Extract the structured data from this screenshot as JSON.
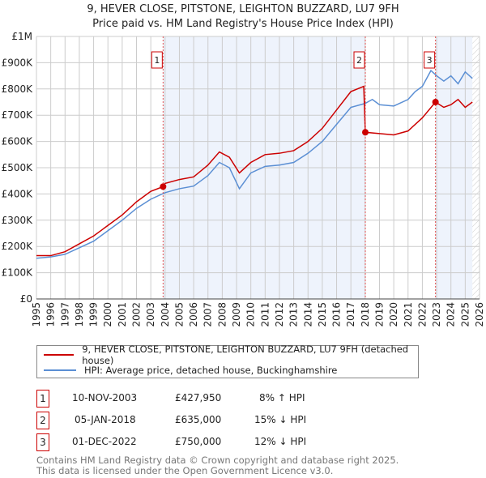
{
  "chart_data": {
    "type": "line",
    "title": "9, HEVER CLOSE, PITSTONE, LEIGHTON BUZZARD, LU7 9FH",
    "subtitle": "Price paid vs. HM Land Registry's House Price Index (HPI)",
    "xlim": [
      1995,
      2026
    ],
    "ylim": [
      0,
      1000000
    ],
    "x_ticks": [
      "1995",
      "1996",
      "1997",
      "1998",
      "1999",
      "2000",
      "2001",
      "2002",
      "2003",
      "2004",
      "2005",
      "2006",
      "2007",
      "2008",
      "2009",
      "2010",
      "2011",
      "2012",
      "2013",
      "2014",
      "2015",
      "2016",
      "2017",
      "2018",
      "2019",
      "2020",
      "2021",
      "2022",
      "2023",
      "2024",
      "2025",
      "2026"
    ],
    "y_ticks": [
      {
        "v": 0,
        "label": "£0"
      },
      {
        "v": 100000,
        "label": "£100K"
      },
      {
        "v": 200000,
        "label": "£200K"
      },
      {
        "v": 300000,
        "label": "£300K"
      },
      {
        "v": 400000,
        "label": "£400K"
      },
      {
        "v": 500000,
        "label": "£500K"
      },
      {
        "v": 600000,
        "label": "£600K"
      },
      {
        "v": 700000,
        "label": "£700K"
      },
      {
        "v": 800000,
        "label": "£800K"
      },
      {
        "v": 900000,
        "label": "£900K"
      },
      {
        "v": 1000000,
        "label": "£1M"
      }
    ],
    "grid": true,
    "series": [
      {
        "name": "9, HEVER CLOSE, PITSTONE, LEIGHTON BUZZARD, LU7 9FH (detached house)",
        "color": "#cc0000",
        "x": [
          1995,
          1996,
          1997,
          1998,
          1999,
          2000,
          2001,
          2002,
          2003,
          2003.86,
          2004,
          2005,
          2006,
          2007,
          2007.8,
          2008.5,
          2009.2,
          2010,
          2011,
          2012,
          2013,
          2014,
          2015,
          2016,
          2017,
          2017.9,
          2018.01,
          2019,
          2020,
          2021,
          2022,
          2022.92,
          2023.5,
          2024,
          2024.5,
          2025,
          2025.5
        ],
        "y": [
          165000,
          165000,
          180000,
          210000,
          240000,
          280000,
          320000,
          370000,
          410000,
          427950,
          440000,
          455000,
          465000,
          510000,
          560000,
          540000,
          480000,
          520000,
          550000,
          555000,
          565000,
          600000,
          650000,
          720000,
          790000,
          810000,
          635000,
          630000,
          625000,
          640000,
          690000,
          750000,
          730000,
          740000,
          760000,
          730000,
          750000
        ]
      },
      {
        "name": "HPI: Average price, detached house, Buckinghamshire",
        "color": "#5b8fd4",
        "x": [
          1995,
          1996,
          1997,
          1998,
          1999,
          2000,
          2001,
          2002,
          2003,
          2004,
          2005,
          2006,
          2007,
          2007.8,
          2008.5,
          2009.2,
          2010,
          2011,
          2012,
          2013,
          2014,
          2015,
          2016,
          2017,
          2018,
          2018.5,
          2019,
          2020,
          2021,
          2021.5,
          2022,
          2022.6,
          2023,
          2023.5,
          2024,
          2024.5,
          2025,
          2025.5
        ],
        "y": [
          155000,
          160000,
          170000,
          195000,
          220000,
          260000,
          300000,
          345000,
          380000,
          405000,
          420000,
          430000,
          470000,
          520000,
          500000,
          420000,
          480000,
          505000,
          510000,
          520000,
          555000,
          600000,
          665000,
          730000,
          745000,
          760000,
          740000,
          735000,
          760000,
          790000,
          810000,
          870000,
          850000,
          830000,
          850000,
          820000,
          865000,
          840000
        ]
      }
    ],
    "sales": [
      {
        "n": "1",
        "x": 2003.86,
        "date": "10-NOV-2003",
        "price": "£427,950",
        "value": 427950,
        "hpi": "8% ↑ HPI"
      },
      {
        "n": "2",
        "x": 2018.01,
        "date": "05-JAN-2018",
        "price": "£635,000",
        "value": 635000,
        "hpi": "15% ↓ HPI"
      },
      {
        "n": "3",
        "x": 2022.92,
        "date": "01-DEC-2022",
        "price": "£750,000",
        "value": 750000,
        "hpi": "12% ↓ HPI"
      }
    ],
    "data_end": 2025.5,
    "legend_position": "below"
  },
  "footer": [
    "Contains HM Land Registry data © Crown copyright and database right 2025.",
    "This data is licensed under the Open Government Licence v3.0."
  ]
}
